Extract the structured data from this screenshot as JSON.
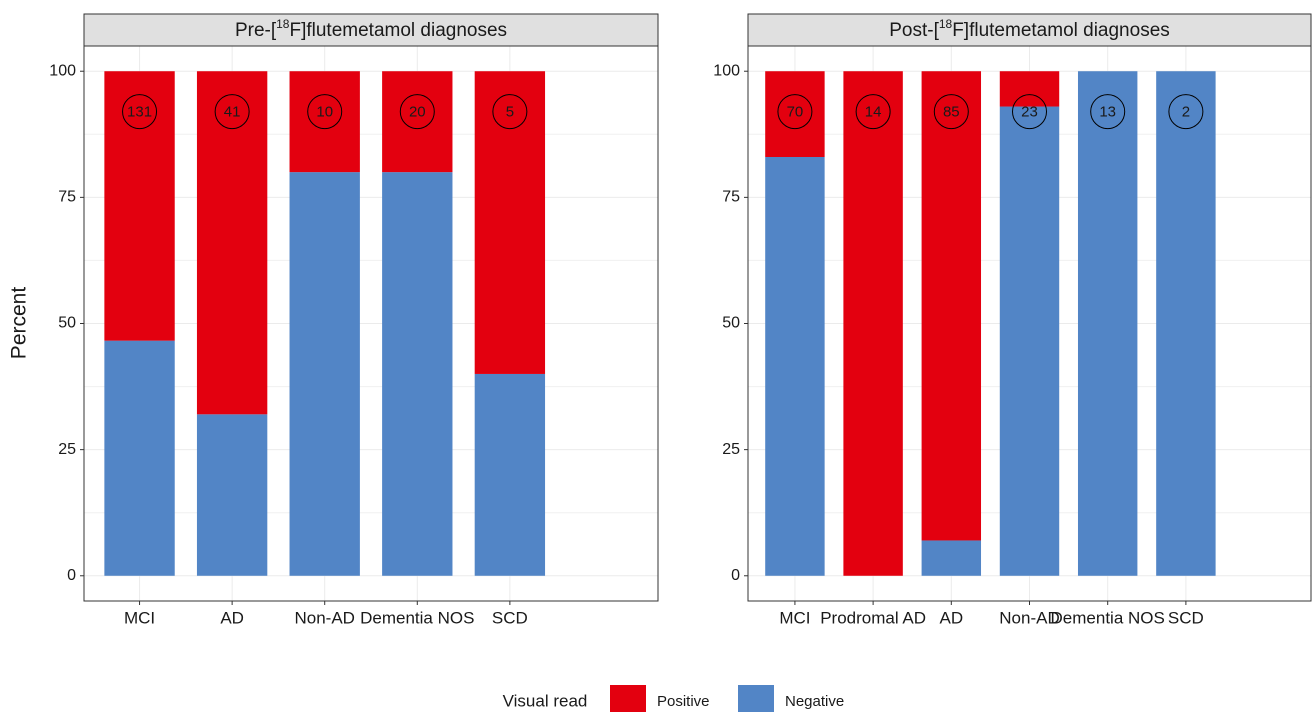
{
  "y_label": "Percent",
  "legend": {
    "title": "Visual read",
    "entries": [
      {
        "name": "Positive",
        "color": "#e3000f"
      },
      {
        "name": "Negative",
        "color": "#5285c6"
      }
    ]
  },
  "chart_data": [
    {
      "type": "stacked_bar",
      "title": [
        "Pre-[",
        "18",
        "F]flutemetamol diagnoses"
      ],
      "categories": [
        "MCI",
        "AD",
        "Non-AD",
        "Dementia NOS",
        "SCD"
      ],
      "series": [
        {
          "values": [
            53.4,
            68,
            20,
            20,
            60
          ]
        },
        {
          "values": [
            46.6,
            32,
            80,
            80,
            40
          ]
        }
      ],
      "annotations": [
        131,
        41,
        10,
        20,
        5
      ],
      "ylim": [
        -5,
        105
      ],
      "yticks": [
        0,
        25,
        50,
        75,
        100
      ],
      "grid": true
    },
    {
      "type": "stacked_bar",
      "title": [
        "Post-[",
        "18",
        "F]flutemetamol diagnoses"
      ],
      "categories": [
        "MCI",
        "Prodromal AD",
        "AD",
        "Non-AD",
        "Dementia NOS",
        "SCD"
      ],
      "series": [
        {
          "values": [
            17,
            100,
            93,
            7,
            0,
            0
          ]
        },
        {
          "values": [
            83,
            0,
            7,
            93,
            100,
            100
          ]
        }
      ],
      "annotations": [
        70,
        14,
        85,
        23,
        13,
        2
      ],
      "ylim": [
        -5,
        105
      ],
      "yticks": [
        0,
        25,
        50,
        75,
        100
      ],
      "grid": true
    }
  ]
}
